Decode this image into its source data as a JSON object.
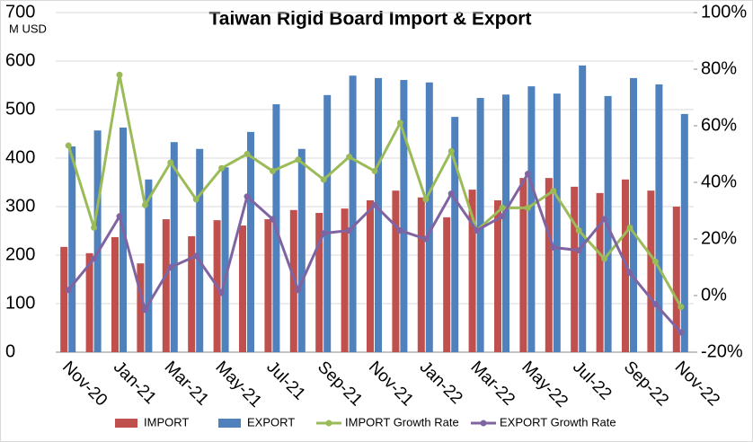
{
  "chart_data": {
    "type": "bar-line",
    "title": "Taiwan Rigid Board Import & Export",
    "y_axis_label": "M USD",
    "categories": [
      "Nov-20",
      null,
      "Jan-21",
      null,
      "Mar-21",
      null,
      "May-21",
      null,
      "Jul-21",
      null,
      "Sep-21",
      null,
      "Nov-21",
      null,
      "Jan-22",
      null,
      "Mar-22",
      null,
      "May-22",
      null,
      "Jul-22",
      null,
      "Sep-22",
      null,
      "Nov-22"
    ],
    "series": [
      {
        "name": "IMPORT",
        "type": "bar",
        "color": "#c0504d",
        "values": [
          217,
          204,
          237,
          183,
          274,
          239,
          272,
          261,
          274,
          293,
          287,
          296,
          313,
          333,
          319,
          278,
          335,
          313,
          359,
          359,
          341,
          328,
          356,
          333,
          300
        ]
      },
      {
        "name": "EXPORT",
        "type": "bar",
        "color": "#4f81bd",
        "values": [
          424,
          457,
          463,
          356,
          433,
          419,
          381,
          454,
          511,
          419,
          530,
          570,
          565,
          561,
          556,
          485,
          524,
          531,
          548,
          533,
          591,
          528,
          565,
          552,
          491
        ]
      },
      {
        "name": "IMPORT Growth Rate",
        "type": "line",
        "axis": "y2",
        "color": "#9bbb59",
        "values": [
          53,
          24,
          78,
          32,
          47,
          34,
          45,
          50,
          44,
          48,
          41,
          49,
          44,
          61,
          34,
          51,
          23,
          31,
          31,
          37,
          23,
          13,
          24,
          12,
          -4
        ]
      },
      {
        "name": "EXPORT Growth Rate",
        "type": "line",
        "axis": "y2",
        "color": "#8064a2",
        "values": [
          2,
          13,
          28,
          -5,
          10,
          14,
          1,
          35,
          27,
          2,
          22,
          23,
          32,
          23,
          20,
          36,
          23,
          28,
          43,
          17,
          16,
          27,
          8,
          -3,
          -13
        ]
      }
    ],
    "ylim": [
      0,
      700
    ],
    "yticks": [
      0,
      100,
      200,
      300,
      400,
      500,
      600,
      700
    ],
    "y2lim": [
      -20,
      100
    ],
    "y2ticks": [
      {
        "value": -20,
        "label": "-20%"
      },
      {
        "value": 0,
        "label": "0%"
      },
      {
        "value": 20,
        "label": "20%"
      },
      {
        "value": 40,
        "label": "40%"
      },
      {
        "value": 60,
        "label": "60%"
      },
      {
        "value": 80,
        "label": "80%"
      },
      {
        "value": 100,
        "label": "100%"
      }
    ],
    "grid": true,
    "legend": "bottom"
  }
}
